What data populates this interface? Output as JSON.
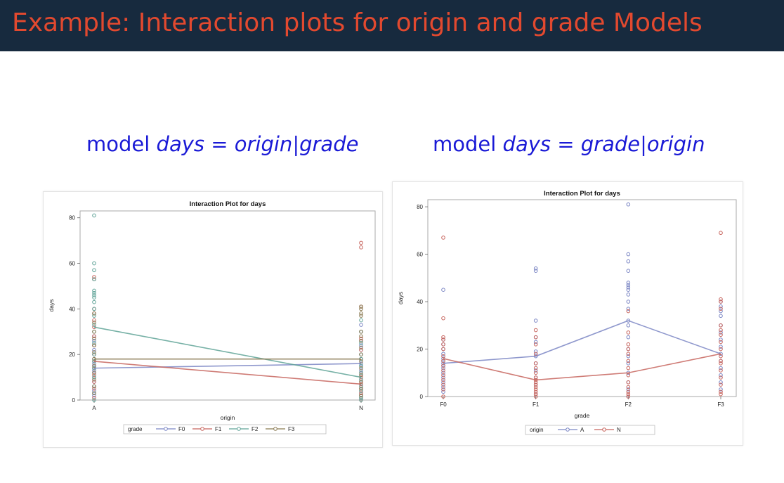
{
  "slide": {
    "title": "Example: Interaction plots for origin and grade Models",
    "left_model": {
      "keyword": "model",
      "lhs": "days",
      "eq": "=",
      "a": "origin",
      "bar": "|",
      "b": "grade"
    },
    "right_model": {
      "keyword": "model",
      "lhs": "days",
      "eq": "=",
      "a": "grade",
      "bar": "|",
      "b": "origin"
    }
  },
  "chart_data": [
    {
      "type": "line",
      "title": "Interaction Plot for days",
      "xlabel": "origin",
      "ylabel": "days",
      "categories": [
        "A",
        "N"
      ],
      "ylim": [
        0,
        83
      ],
      "yticks": [
        0,
        20,
        40,
        60,
        80
      ],
      "grid": false,
      "legend": {
        "title": "grade",
        "placement": "bottom"
      },
      "series": [
        {
          "name": "F0",
          "color": "#7b86c4",
          "means": [
            14,
            16
          ],
          "points": [
            [
              2,
              4,
              6,
              8,
              10,
              12,
              13,
              14,
              15,
              16,
              18,
              20,
              22,
              24,
              26,
              28
            ],
            [
              1,
              3,
              5,
              7,
              9,
              11,
              13,
              15,
              16,
              18,
              20,
              22,
              24,
              26,
              30,
              33
            ]
          ]
        },
        {
          "name": "F1",
          "color": "#c7655e",
          "means": [
            17,
            7
          ],
          "points": [
            [
              1,
              5,
              8,
              11,
              14,
              17,
              20,
              24,
              28,
              32,
              35,
              38,
              40,
              53,
              54
            ],
            [
              0,
              1,
              2,
              3,
              4,
              5,
              6,
              7,
              8,
              10,
              12,
              18,
              22,
              27,
              41,
              67,
              69
            ]
          ]
        },
        {
          "name": "F2",
          "color": "#5fa397",
          "means": [
            32,
            10
          ],
          "points": [
            [
              0,
              3,
              6,
              10,
              14,
              17,
              20,
              25,
              30,
              33,
              37,
              40,
              43,
              45,
              46,
              47,
              48,
              53,
              57,
              60,
              81
            ],
            [
              0,
              1,
              2,
              4,
              6,
              9,
              12,
              15,
              18,
              20,
              25,
              30,
              35
            ]
          ]
        },
        {
          "name": "F3",
          "color": "#8a7a52",
          "means": [
            18,
            18
          ],
          "points": [
            [
              3,
              6,
              9,
              12,
              15,
              18,
              21,
              24,
              27,
              30,
              34,
              38
            ],
            [
              2,
              5,
              8,
              11,
              14,
              17,
              20,
              23,
              26,
              28,
              30,
              37,
              38,
              40,
              41
            ]
          ]
        }
      ]
    },
    {
      "type": "line",
      "title": "Interaction Plot for days",
      "xlabel": "grade",
      "ylabel": "days",
      "categories": [
        "F0",
        "F1",
        "F2",
        "F3"
      ],
      "ylim": [
        0,
        83
      ],
      "yticks": [
        0,
        20,
        40,
        60,
        80
      ],
      "grid": false,
      "legend": {
        "title": "origin",
        "placement": "bottom"
      },
      "series": [
        {
          "name": "A",
          "color": "#7b86c4",
          "means": [
            14,
            17,
            32,
            18
          ],
          "points": [
            [
              2,
              4,
              6,
              8,
              10,
              12,
              13,
              14,
              15,
              16,
              18,
              20,
              22,
              24,
              45
            ],
            [
              1,
              5,
              8,
              11,
              14,
              17,
              19,
              23,
              25,
              32,
              53,
              54
            ],
            [
              0,
              3,
              6,
              10,
              14,
              17,
              20,
              25,
              30,
              32,
              37,
              40,
              43,
              45,
              46,
              47,
              48,
              53,
              57,
              60,
              81
            ],
            [
              3,
              6,
              9,
              12,
              15,
              18,
              21,
              24,
              27,
              30,
              34,
              36,
              38,
              40
            ]
          ]
        },
        {
          "name": "N",
          "color": "#c7655e",
          "means": [
            16,
            7,
            10,
            18
          ],
          "points": [
            [
              0,
              3,
              5,
              7,
              9,
              11,
              13,
              15,
              17,
              20,
              22,
              24,
              25,
              33,
              67
            ],
            [
              0,
              1,
              2,
              3,
              4,
              5,
              6,
              7,
              8,
              10,
              12,
              14,
              18,
              22,
              25,
              28
            ],
            [
              0,
              1,
              2,
              4,
              6,
              9,
              12,
              15,
              18,
              20,
              22,
              27,
              36
            ],
            [
              1,
              2,
              5,
              8,
              11,
              14,
              15,
              17,
              20,
              23,
              26,
              28,
              30,
              37,
              40,
              41,
              69
            ]
          ]
        }
      ]
    }
  ]
}
